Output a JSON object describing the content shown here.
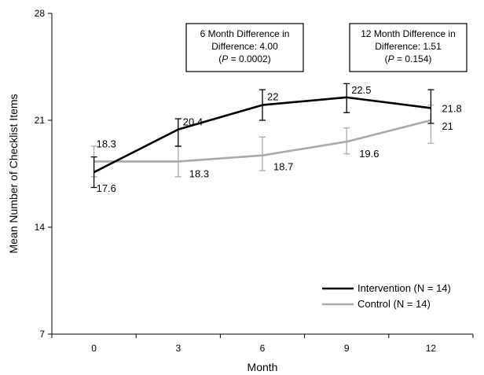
{
  "chart_data": {
    "type": "line",
    "xlabel": "Month",
    "ylabel": "Mean Number of Checklist Items",
    "x": [
      0,
      3,
      6,
      9,
      12
    ],
    "xlim": [
      -1.5,
      13.5
    ],
    "ylim": [
      7,
      28
    ],
    "y_ticks": [
      7,
      14,
      21,
      28
    ],
    "x_ticks": [
      0,
      3,
      6,
      9,
      12
    ],
    "grid": false,
    "legend_position": "bottom-right",
    "series": [
      {
        "name": "Intervention (N = 14)",
        "color": "#000000",
        "values": [
          17.6,
          20.4,
          22,
          22.5,
          21.8
        ],
        "error_low": [
          16.6,
          19.3,
          21.0,
          21.5,
          20.8
        ],
        "error_high": [
          18.6,
          21.1,
          23.0,
          23.4,
          23.0
        ],
        "labels": [
          "17.6",
          "20.4",
          "22",
          "22.5",
          "21.8"
        ]
      },
      {
        "name": "Control (N = 14)",
        "color": "#aaaaaa",
        "values": [
          18.3,
          18.3,
          18.7,
          19.6,
          21
        ],
        "error_low": [
          17.3,
          17.3,
          17.7,
          18.8,
          19.5
        ],
        "error_high": [
          19.3,
          19.3,
          19.9,
          20.5,
          22.0
        ],
        "labels": [
          "18.3",
          "18.3",
          "18.7",
          "19.6",
          "21"
        ]
      }
    ],
    "annotations": [
      {
        "lines": [
          [
            {
              "t": "6 Month Difference in"
            }
          ],
          [
            {
              "t": "Difference: 4.00"
            }
          ],
          [
            {
              "t": "("
            },
            {
              "t": "P",
              "italic": true
            },
            {
              "t": " = 0.0002)"
            }
          ]
        ]
      },
      {
        "lines": [
          [
            {
              "t": "12 Month Difference in"
            }
          ],
          [
            {
              "t": "Difference: 1.51"
            }
          ],
          [
            {
              "t": "("
            },
            {
              "t": "P",
              "italic": true
            },
            {
              "t": " = 0.154)"
            }
          ]
        ]
      }
    ]
  }
}
